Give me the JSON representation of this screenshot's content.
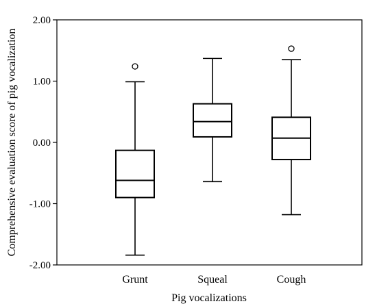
{
  "chart_data": {
    "type": "box",
    "xlabel": "Pig vocalizations",
    "ylabel": "Comprehensive evaluation score of pig vocalization",
    "ylim": [
      -2.0,
      2.0
    ],
    "yticks": [
      2.0,
      1.0,
      0.0,
      -1.0,
      -2.0
    ],
    "ytick_labels": [
      "2.00",
      "1.00",
      "0.00",
      "-1.00",
      "-2.00"
    ],
    "categories": [
      "Grunt",
      "Squeal",
      "Cough"
    ],
    "boxes": [
      {
        "category": "Grunt",
        "whisker_low": -1.84,
        "q1": -0.9,
        "median": -0.62,
        "q3": -0.13,
        "whisker_high": 0.99,
        "outliers": [
          1.24
        ]
      },
      {
        "category": "Squeal",
        "whisker_low": -0.64,
        "q1": 0.09,
        "median": 0.34,
        "q3": 0.63,
        "whisker_high": 1.37,
        "outliers": []
      },
      {
        "category": "Cough",
        "whisker_low": -1.18,
        "q1": -0.28,
        "median": 0.07,
        "q3": 0.41,
        "whisker_high": 1.35,
        "outliers": [
          1.53
        ]
      }
    ],
    "grid": false,
    "legend": "none"
  }
}
